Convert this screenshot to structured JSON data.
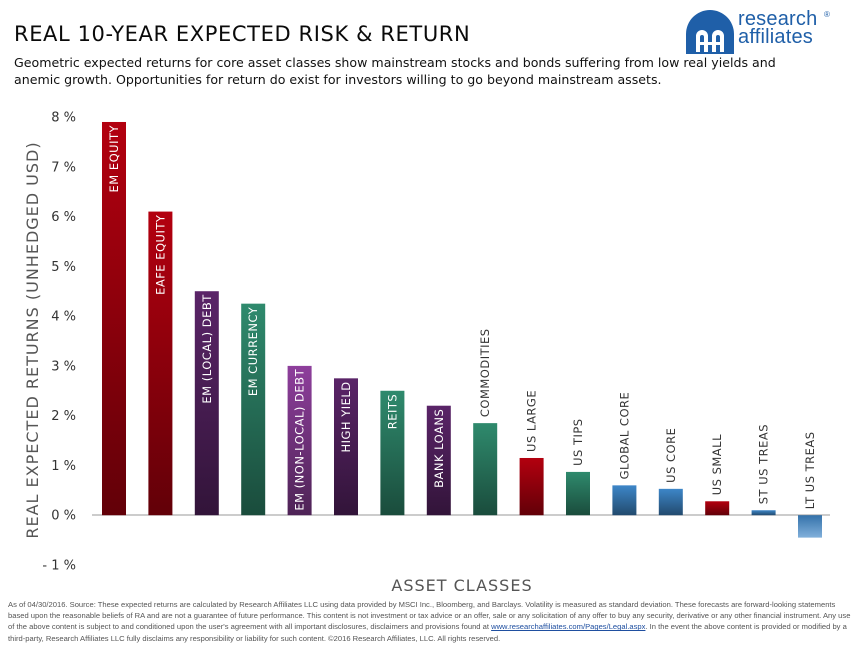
{
  "header": {
    "title": "REAL 10-YEAR EXPECTED RISK & RETURN",
    "subtitle": "Geometric expected returns for core asset classes show mainstream stocks and bonds suffering from low real yields and anemic growth. Opportunities for return do exist for investors willing to go beyond mainstream assets."
  },
  "logo": {
    "line1": "research",
    "line2": "affiliates",
    "registered": "®",
    "color": "#1f5fa8"
  },
  "chart_data": {
    "type": "bar",
    "title": "",
    "xlabel": "ASSET CLASSES",
    "ylabel": "REAL EXPECTED RETURNS (UNHEDGED USD)",
    "ylim": [
      -1,
      8
    ],
    "yticks": [
      "8 %",
      "7 %",
      "6 %",
      "5 %",
      "4 %",
      "3 %",
      "2 %",
      "1 %",
      "0 %",
      "- 1 %"
    ],
    "ytick_values": [
      8,
      7,
      6,
      5,
      4,
      3,
      2,
      1,
      0,
      -1
    ],
    "grid": false,
    "categories": [
      "EM EQUITY",
      "EAFE EQUITY",
      "EM (LOCAL) DEBT",
      "EM CURRENCY",
      "EM (NON-LOCAL) DEBT",
      "HIGH YIELD",
      "REITS",
      "BANK LOANS",
      "COMMODITIES",
      "US LARGE",
      "US TIPS",
      "GLOBAL CORE",
      "US CORE",
      "US SMALL",
      "ST US TREAS",
      "LT US TREAS"
    ],
    "values": [
      7.9,
      6.1,
      4.5,
      4.25,
      3.0,
      2.75,
      2.5,
      2.2,
      1.85,
      1.15,
      0.87,
      0.6,
      0.53,
      0.28,
      0.1,
      -0.45
    ],
    "label_inside": [
      true,
      true,
      true,
      true,
      true,
      true,
      true,
      true,
      false,
      false,
      false,
      false,
      false,
      false,
      false,
      false
    ],
    "colors": {
      "red": "#b3000f",
      "purple": "#5a2468",
      "violet": "#8e3f9c",
      "green": "#2f8a6d",
      "blue": "#3d86c8"
    },
    "bar_color_keys": [
      "red",
      "red",
      "purple",
      "green",
      "violet",
      "purple",
      "green",
      "purple",
      "green",
      "red",
      "green",
      "blue",
      "blue",
      "red",
      "blue",
      "blue"
    ]
  },
  "footer": {
    "text_1": "As of 04/30/2016. Source: These expected returns are calculated by Research Affiliates LLC using data provided by MSCI Inc., Bloomberg, and Barclays. Volatility is measured as standard deviation. These forecasts are forward-looking statements based upon the reasonable beliefs of RA and are not a guarantee of future performance. This content is not investment or tax advice or an offer, sale or any solicitation of any offer to buy any security, derivative or any other financial instrument. Any use of the above content is subject to and conditioned upon the user's agreement with all important disclosures, disclaimers and provisions found at ",
    "link": "www.researchaffiliates.com/Pages/Legal.aspx",
    "text_2": ". In the event the above content is provided or modified by a third-party, Research Affiliates LLC fully disclaims any responsibility or liability for such content. ©2016 Research Affiliates, LLC. All rights reserved."
  }
}
